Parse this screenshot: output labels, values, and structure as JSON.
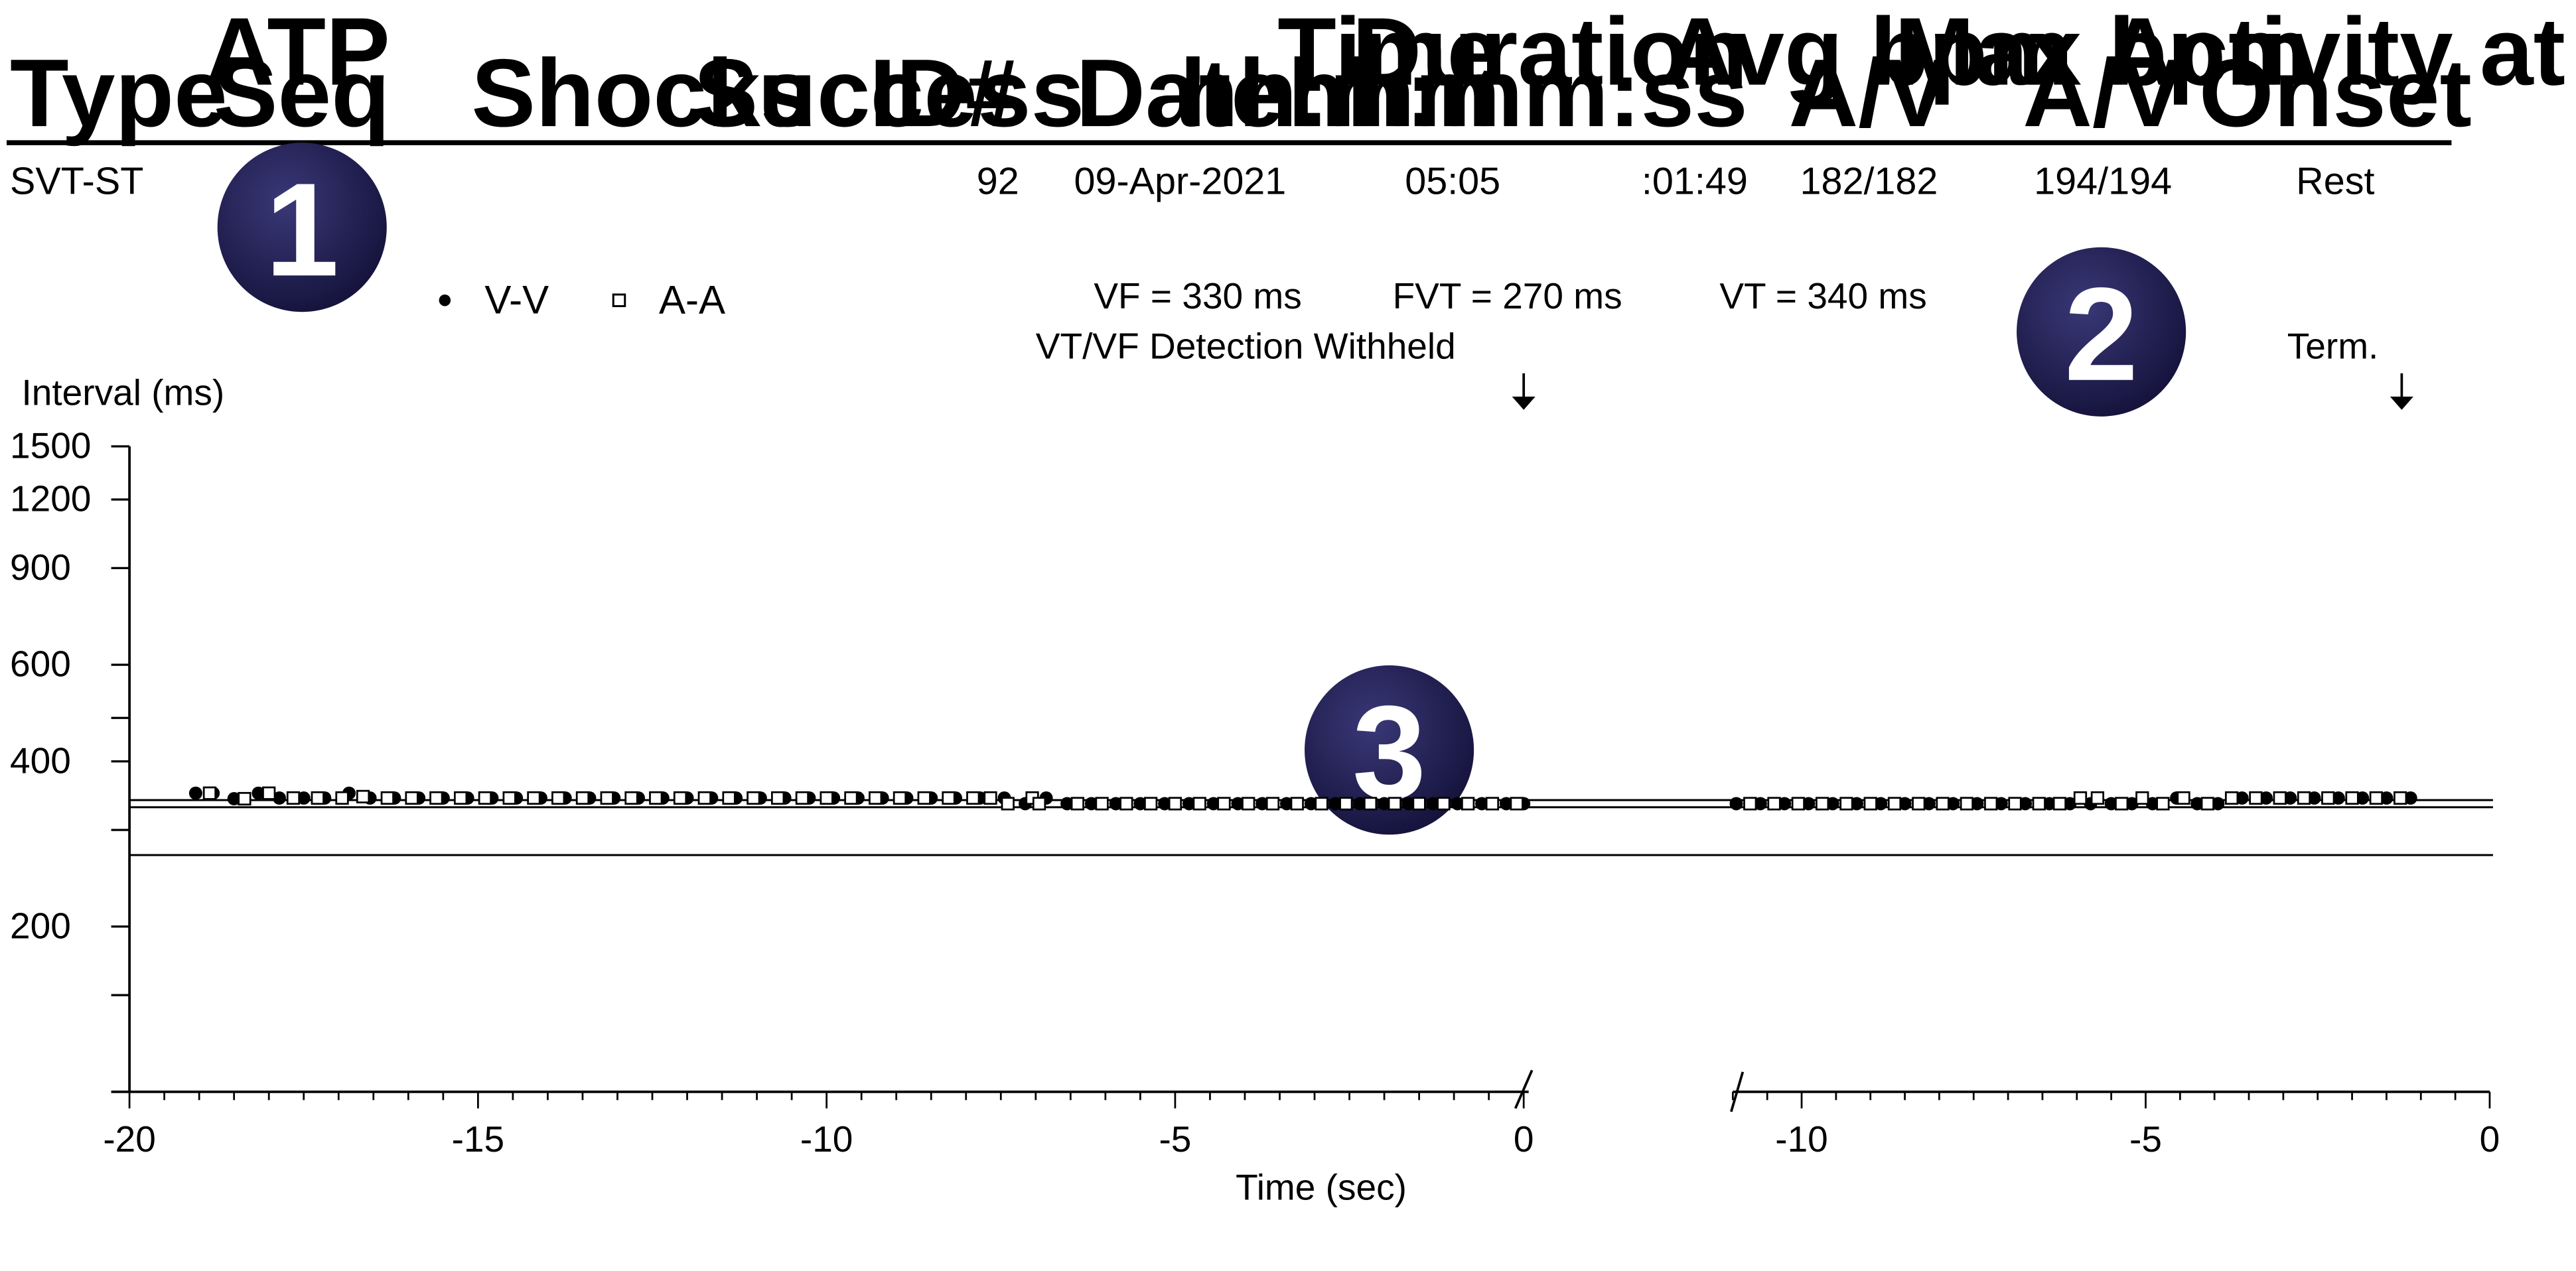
{
  "table": {
    "headers": [
      {
        "line1": "",
        "line2": "Type"
      },
      {
        "line1": "ATP",
        "line2": "Seq"
      },
      {
        "line1": "",
        "line2": "Shocks"
      },
      {
        "line1": "",
        "line2": "Success"
      },
      {
        "line1": "",
        "line2": "ID#"
      },
      {
        "line1": "",
        "line2": "Date"
      },
      {
        "line1": "Time",
        "line2": "hh:mm"
      },
      {
        "line1": "Duration",
        "line2": "hh:mm:ss"
      },
      {
        "line1": "Avg bpm",
        "line2": "A/V"
      },
      {
        "line1": "Max bpm",
        "line2": "A/V"
      },
      {
        "line1": "Activity at",
        "line2": "Onset"
      }
    ],
    "row": [
      "SVT-ST",
      "",
      "",
      "",
      "92",
      "09-Apr-2021",
      "05:05",
      ":01:49",
      "182/182",
      "194/194",
      "Rest"
    ]
  },
  "badges": [
    "1",
    "2",
    "3"
  ],
  "legend": {
    "vv": "V-V",
    "aa": "A-A"
  },
  "zones": {
    "vf": "VF = 330 ms",
    "fvt": "FVT = 270 ms",
    "vt": "VT = 340 ms"
  },
  "annotations": {
    "withheld": "VT/VF Detection Withheld",
    "term": "Term."
  },
  "colors": {
    "badge": "#1f1d4d"
  },
  "chart_data": {
    "type": "scatter",
    "ylabel": "Interval (ms)",
    "xlabel": "Time (sec)",
    "y_scale": "log",
    "ylim": [
      100,
      1500
    ],
    "y_tick_labels": [
      "1500",
      "1200",
      "900",
      "600",
      "400",
      "200"
    ],
    "y_ticks": [
      1500,
      1200,
      900,
      600,
      480,
      400,
      300,
      200,
      150
    ],
    "thresholds": [
      340,
      330,
      270
    ],
    "panels": [
      {
        "name": "onset",
        "xlim": [
          -20,
          0
        ],
        "major_ticks": [
          -20,
          -15,
          -10,
          -5,
          0
        ],
        "tick_labels": [
          "-20",
          "-15",
          "-10",
          "-5",
          "0"
        ],
        "event_marker": "VT/VF Detection Withheld",
        "event_x": 0,
        "series": [
          {
            "name": "V-V",
            "points": [
              [
                -19.05,
                350
              ],
              [
                -18.8,
                350
              ],
              [
                -18.5,
                342
              ],
              [
                -18.15,
                350
              ],
              [
                -17.85,
                343
              ],
              [
                -17.5,
                343
              ],
              [
                -17.2,
                343
              ],
              [
                -16.85,
                350
              ],
              [
                -16.55,
                343
              ],
              [
                -16.2,
                343
              ],
              [
                -15.85,
                343
              ],
              [
                -15.5,
                343
              ],
              [
                -15.15,
                343
              ],
              [
                -14.8,
                343
              ],
              [
                -14.45,
                343
              ],
              [
                -14.1,
                343
              ],
              [
                -13.75,
                343
              ],
              [
                -13.4,
                343
              ],
              [
                -13.05,
                343
              ],
              [
                -12.7,
                343
              ],
              [
                -12.35,
                343
              ],
              [
                -12.0,
                343
              ],
              [
                -11.65,
                343
              ],
              [
                -11.3,
                343
              ],
              [
                -10.95,
                343
              ],
              [
                -10.6,
                343
              ],
              [
                -10.25,
                343
              ],
              [
                -9.9,
                343
              ],
              [
                -9.55,
                343
              ],
              [
                -9.2,
                343
              ],
              [
                -8.85,
                343
              ],
              [
                -8.5,
                343
              ],
              [
                -8.15,
                343
              ],
              [
                -7.8,
                343
              ],
              [
                -7.45,
                343
              ],
              [
                -7.15,
                335
              ],
              [
                -6.85,
                343
              ],
              [
                -6.55,
                335
              ],
              [
                -6.2,
                335
              ],
              [
                -5.85,
                335
              ],
              [
                -5.5,
                335
              ],
              [
                -5.15,
                335
              ],
              [
                -4.8,
                335
              ],
              [
                -4.45,
                335
              ],
              [
                -4.1,
                335
              ],
              [
                -3.75,
                335
              ],
              [
                -3.4,
                335
              ],
              [
                -3.05,
                335
              ],
              [
                -2.7,
                335
              ],
              [
                -2.35,
                335
              ],
              [
                -2.0,
                335
              ],
              [
                -1.65,
                335
              ],
              [
                -1.3,
                335
              ],
              [
                -0.95,
                335
              ],
              [
                -0.6,
                335
              ],
              [
                -0.25,
                335
              ],
              [
                0,
                335
              ]
            ]
          },
          {
            "name": "A-A",
            "points": [
              [
                -18.85,
                350
              ],
              [
                -18.35,
                342
              ],
              [
                -18.0,
                350
              ],
              [
                -17.65,
                343
              ],
              [
                -17.3,
                343
              ],
              [
                -16.95,
                343
              ],
              [
                -16.65,
                345
              ],
              [
                -16.3,
                343
              ],
              [
                -15.95,
                343
              ],
              [
                -15.6,
                343
              ],
              [
                -15.25,
                343
              ],
              [
                -14.9,
                343
              ],
              [
                -14.55,
                343
              ],
              [
                -14.2,
                343
              ],
              [
                -13.85,
                343
              ],
              [
                -13.5,
                343
              ],
              [
                -13.15,
                343
              ],
              [
                -12.8,
                343
              ],
              [
                -12.45,
                343
              ],
              [
                -12.1,
                343
              ],
              [
                -11.75,
                343
              ],
              [
                -11.4,
                343
              ],
              [
                -11.05,
                343
              ],
              [
                -10.7,
                343
              ],
              [
                -10.35,
                343
              ],
              [
                -10.0,
                343
              ],
              [
                -9.65,
                343
              ],
              [
                -9.3,
                343
              ],
              [
                -8.95,
                343
              ],
              [
                -8.6,
                343
              ],
              [
                -8.25,
                343
              ],
              [
                -7.9,
                343
              ],
              [
                -7.65,
                343
              ],
              [
                -7.4,
                335
              ],
              [
                -7.05,
                343
              ],
              [
                -6.95,
                335
              ],
              [
                -6.4,
                335
              ],
              [
                -6.05,
                335
              ],
              [
                -5.7,
                335
              ],
              [
                -5.35,
                335
              ],
              [
                -5.0,
                335
              ],
              [
                -4.65,
                335
              ],
              [
                -4.3,
                335
              ],
              [
                -3.95,
                335
              ],
              [
                -3.6,
                335
              ],
              [
                -3.25,
                335
              ],
              [
                -2.9,
                335
              ],
              [
                -2.55,
                335
              ],
              [
                -2.2,
                335
              ],
              [
                -1.85,
                335
              ],
              [
                -1.5,
                335
              ],
              [
                -1.15,
                335
              ],
              [
                -0.8,
                335
              ],
              [
                -0.45,
                335
              ],
              [
                -0.1,
                335
              ]
            ]
          }
        ]
      },
      {
        "name": "termination",
        "xlim": [
          -11,
          0
        ],
        "major_ticks": [
          -10,
          -5,
          0
        ],
        "tick_labels": [
          "-10",
          "-5",
          "0"
        ],
        "event_marker": "Term.",
        "event_x": -1.3,
        "series": [
          {
            "name": "V-V",
            "points": [
              [
                -10.95,
                335
              ],
              [
                -10.6,
                335
              ],
              [
                -10.25,
                335
              ],
              [
                -9.9,
                335
              ],
              [
                -9.55,
                335
              ],
              [
                -9.2,
                335
              ],
              [
                -8.85,
                335
              ],
              [
                -8.5,
                335
              ],
              [
                -8.15,
                335
              ],
              [
                -7.8,
                335
              ],
              [
                -7.45,
                335
              ],
              [
                -7.1,
                335
              ],
              [
                -6.75,
                335
              ],
              [
                -6.4,
                335
              ],
              [
                -6.1,
                335
              ],
              [
                -5.8,
                335
              ],
              [
                -5.5,
                335
              ],
              [
                -5.2,
                335
              ],
              [
                -4.9,
                335
              ],
              [
                -4.55,
                343
              ],
              [
                -4.25,
                335
              ],
              [
                -3.95,
                335
              ],
              [
                -3.6,
                343
              ],
              [
                -3.25,
                343
              ],
              [
                -2.9,
                343
              ],
              [
                -2.55,
                343
              ],
              [
                -2.2,
                343
              ],
              [
                -1.85,
                343
              ],
              [
                -1.5,
                343
              ],
              [
                -1.15,
                343
              ]
            ]
          },
          {
            "name": "A-A",
            "points": [
              [
                -10.75,
                335
              ],
              [
                -10.4,
                335
              ],
              [
                -10.05,
                335
              ],
              [
                -9.7,
                335
              ],
              [
                -9.35,
                335
              ],
              [
                -9.0,
                335
              ],
              [
                -8.65,
                335
              ],
              [
                -8.3,
                335
              ],
              [
                -7.95,
                335
              ],
              [
                -7.6,
                335
              ],
              [
                -7.25,
                335
              ],
              [
                -6.9,
                335
              ],
              [
                -6.55,
                335
              ],
              [
                -6.25,
                335
              ],
              [
                -5.95,
                343
              ],
              [
                -5.7,
                343
              ],
              [
                -5.35,
                335
              ],
              [
                -5.05,
                343
              ],
              [
                -4.75,
                335
              ],
              [
                -4.45,
                343
              ],
              [
                -4.1,
                335
              ],
              [
                -3.75,
                343
              ],
              [
                -3.4,
                343
              ],
              [
                -3.05,
                343
              ],
              [
                -2.7,
                343
              ],
              [
                -2.35,
                343
              ],
              [
                -2.0,
                343
              ],
              [
                -1.65,
                343
              ],
              [
                -1.3,
                343
              ]
            ]
          }
        ]
      }
    ]
  }
}
